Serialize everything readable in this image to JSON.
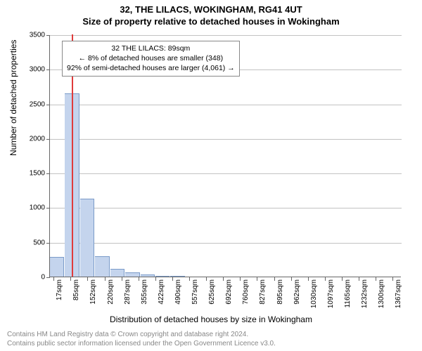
{
  "title": {
    "line1": "32, THE LILACS, WOKINGHAM, RG41 4UT",
    "line2": "Size of property relative to detached houses in Wokingham"
  },
  "chart": {
    "type": "histogram",
    "xlabel": "Distribution of detached houses by size in Wokingham",
    "ylabel": "Number of detached properties",
    "ylim": [
      0,
      3500
    ],
    "ytick_step": 500,
    "yticks": [
      0,
      500,
      1000,
      1500,
      2000,
      2500,
      3000,
      3500
    ],
    "x_tick_labels": [
      "17sqm",
      "85sqm",
      "152sqm",
      "220sqm",
      "287sqm",
      "355sqm",
      "422sqm",
      "490sqm",
      "557sqm",
      "625sqm",
      "692sqm",
      "760sqm",
      "827sqm",
      "895sqm",
      "962sqm",
      "1030sqm",
      "1097sqm",
      "1165sqm",
      "1232sqm",
      "1300sqm",
      "1367sqm"
    ],
    "x_tick_positions": [
      17,
      85,
      152,
      220,
      287,
      355,
      422,
      490,
      557,
      625,
      692,
      760,
      827,
      895,
      962,
      1030,
      1097,
      1165,
      1232,
      1300,
      1367
    ],
    "xlim": [
      0,
      1400
    ],
    "bar_color": "#c4d4ed",
    "bar_border": "#7a9bc9",
    "marker_color": "#e03b3b",
    "grid_color": "#666666",
    "background_color": "#ffffff",
    "bars": [
      {
        "x0": 0,
        "x1": 60,
        "count": 280
      },
      {
        "x0": 60,
        "x1": 120,
        "count": 2650
      },
      {
        "x0": 120,
        "x1": 180,
        "count": 1130
      },
      {
        "x0": 180,
        "x1": 240,
        "count": 290
      },
      {
        "x0": 240,
        "x1": 300,
        "count": 110
      },
      {
        "x0": 300,
        "x1": 360,
        "count": 60
      },
      {
        "x0": 360,
        "x1": 420,
        "count": 30
      },
      {
        "x0": 420,
        "x1": 480,
        "count": 15
      },
      {
        "x0": 480,
        "x1": 540,
        "count": 8
      }
    ],
    "marker_x": 89,
    "annotation": {
      "line1": "32 THE LILACS: 89sqm",
      "line2": "← 8% of detached houses are smaller (348)",
      "line3": "92% of semi-detached houses are larger (4,061) →"
    },
    "title_fontsize": 13,
    "label_fontsize": 12,
    "tick_fontsize": 10
  },
  "footer": {
    "line1": "Contains HM Land Registry data © Crown copyright and database right 2024.",
    "line2": "Contains public sector information licensed under the Open Government Licence v3.0."
  }
}
